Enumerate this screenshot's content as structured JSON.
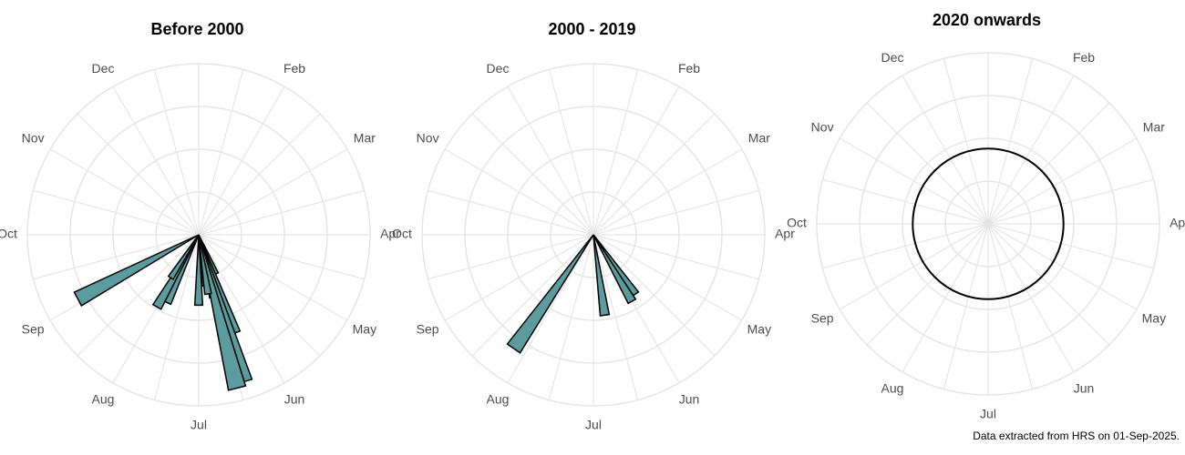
{
  "caption": "Data extracted from HRS on 01-Sep-2025.",
  "colors": {
    "bar_fill": "#5b9c9e",
    "bar_stroke": "#000000",
    "grid": "#e5e5e5"
  },
  "chart_data": [
    {
      "type": "polar-bar",
      "title": "Before 2000",
      "months": [
        "Jan",
        "Feb",
        "Mar",
        "Apr",
        "May",
        "Jun",
        "Jul",
        "Aug",
        "Sep",
        "Oct",
        "Nov",
        "Dec"
      ],
      "grid": true,
      "values": [
        {
          "angle_deg": 156,
          "value": 1.0
        },
        {
          "angle_deg": 160,
          "value": 2.45
        },
        {
          "angle_deg": 163,
          "value": 3.6
        },
        {
          "angle_deg": 167,
          "value": 1.5
        },
        {
          "angle_deg": 173,
          "value": 1.2
        },
        {
          "angle_deg": 180,
          "value": 1.65
        },
        {
          "angle_deg": 205,
          "value": 1.75
        },
        {
          "angle_deg": 210,
          "value": 1.95
        },
        {
          "angle_deg": 213,
          "value": 1.2
        },
        {
          "angle_deg": 242,
          "value": 3.2
        },
        {
          "angle_deg": 166,
          "value": 3.7
        },
        {
          "angle_deg": 171,
          "value": 1.4
        }
      ],
      "ylim": [
        0,
        4
      ]
    },
    {
      "type": "polar-bar",
      "title": "2000 - 2019",
      "months": [
        "Jan",
        "Feb",
        "Mar",
        "Apr",
        "May",
        "Jun",
        "Jul",
        "Aug",
        "Sep",
        "Oct",
        "Nov",
        "Dec"
      ],
      "grid": true,
      "values": [
        {
          "angle_deg": 145,
          "value": 1.7
        },
        {
          "angle_deg": 150,
          "value": 1.8
        },
        {
          "angle_deg": 172,
          "value": 1.9
        },
        {
          "angle_deg": 215,
          "value": 3.25
        }
      ],
      "ylim": [
        0,
        4
      ]
    },
    {
      "type": "polar-bar",
      "title": "2020 onwards",
      "months": [
        "Jan",
        "Feb",
        "Mar",
        "Apr",
        "May",
        "Jun",
        "Jul",
        "Aug",
        "Sep",
        "Oct",
        "Nov",
        "Dec"
      ],
      "grid": true,
      "values": [],
      "ylim": [
        0,
        1
      ],
      "zero_circle": true
    }
  ]
}
